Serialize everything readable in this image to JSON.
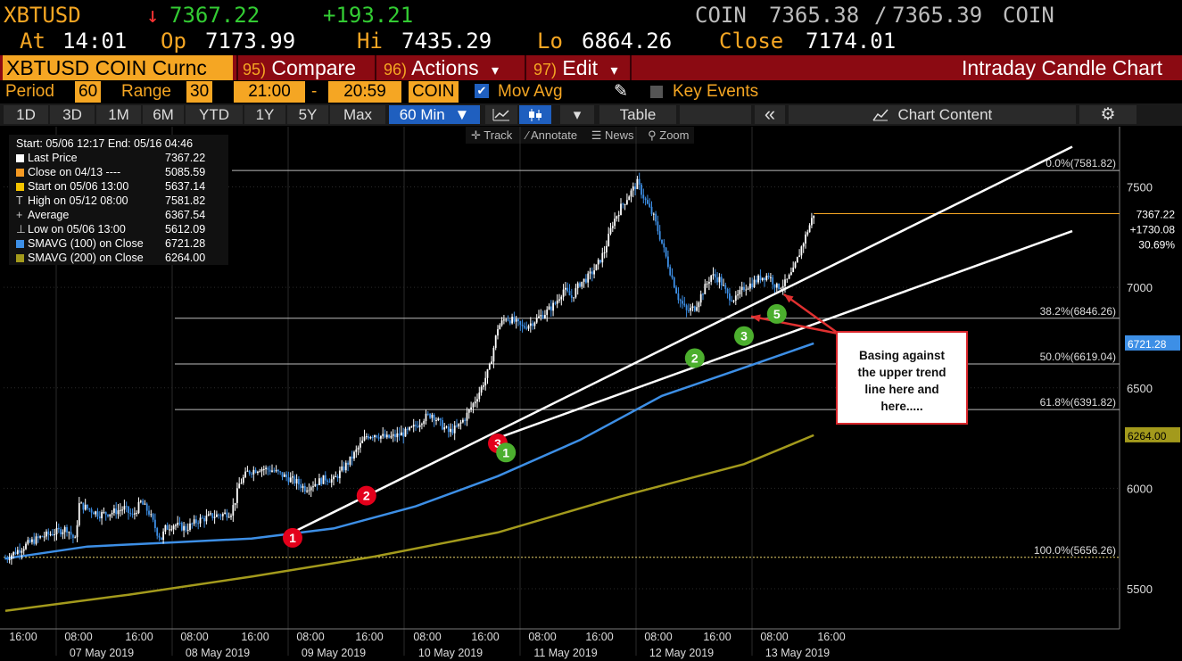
{
  "header": {
    "symbol": "XBTUSD",
    "arrow": "↓",
    "last": "7367.22",
    "change": "+193.21",
    "source_left": "COIN",
    "bid": "7365.38",
    "slash": "/",
    "ask": "7365.39",
    "source_right": "COIN",
    "at_label": "At",
    "at_time": "14:01",
    "op_label": "Op",
    "op_value": "7173.99",
    "hi_label": "Hi",
    "hi_value": "7435.29",
    "lo_label": "Lo",
    "lo_value": "6864.26",
    "close_label": "Close",
    "close_value": "7174.01"
  },
  "menu": {
    "ticker": "XBTUSD COIN Curnc",
    "compare_num": "95)",
    "compare": "Compare",
    "actions_num": "96)",
    "actions": "Actions",
    "actions_caret": "▾",
    "edit_num": "97)",
    "edit": "Edit",
    "edit_caret": "▾",
    "chart_title": "Intraday Candle Chart"
  },
  "settings": {
    "period_label": "Period",
    "period_value": "60",
    "range_label": "Range",
    "range_value": "30",
    "range_start": "21:00",
    "range_dash": "-",
    "range_end": "20:59",
    "source": "COIN",
    "mov_avg_check": "✔",
    "mov_avg": "Mov Avg",
    "pencil": "✎",
    "key_events": "Key Events"
  },
  "toolbar": {
    "ranges": [
      "1D",
      "3D",
      "1M",
      "6M",
      "YTD",
      "1Y",
      "5Y",
      "Max"
    ],
    "interval": "60 Min",
    "interval_caret": "▼",
    "caret": "▾",
    "table": "Table",
    "collapse": "«",
    "chart_content": "Chart Content",
    "gear": "⚙"
  },
  "tools": {
    "track": "Track",
    "annotate": "Annotate",
    "news": "News",
    "zoom": "Zoom"
  },
  "legend": {
    "header": "Start: 05/06 12:17 End: 05/16 04:46",
    "items": [
      {
        "label": "Last Price",
        "value": "7367.22",
        "color": "#ffffff"
      },
      {
        "label": "Close on 04/13 ----",
        "value": "5085.59",
        "color": "#f59a23"
      },
      {
        "label": "Start on 05/06 13:00",
        "value": "5637.14",
        "color": "#f5c400"
      },
      {
        "label": "High on 05/12 08:00",
        "value": "7581.82",
        "color": "#cccccc"
      },
      {
        "label": "Average",
        "value": "6367.54",
        "color": "#cccccc"
      },
      {
        "label": "Low on 05/06 13:00",
        "value": "5612.09",
        "color": "#cccccc"
      },
      {
        "label": "SMAVG (100)  on Close",
        "value": "6721.28",
        "color": "#3d8fe6"
      },
      {
        "label": "SMAVG (200)  on Close",
        "value": "6264.00",
        "color": "#a39a1c"
      }
    ]
  },
  "callout": {
    "lines": [
      "Basing against",
      "the upper trend",
      "line here and",
      "here....."
    ]
  },
  "colors": {
    "accent_amber": "#f5a623",
    "menu_bar": "#8b0a12",
    "candle_up": "#ffffff",
    "candle_down": "#3d8fe6",
    "sma100": "#3d8fe6",
    "sma200": "#a39a1c",
    "marker_red": "#e3001b",
    "marker_green": "#4caf2e"
  },
  "chart_data": {
    "type": "candlestick",
    "title": "Intraday Candle Chart",
    "period_minutes": 60,
    "ylim": [
      5300,
      7800
    ],
    "y_ticks": [
      5500,
      6000,
      6500,
      7000,
      7500
    ],
    "x_ticks": [
      {
        "time": "16:00",
        "date": ""
      },
      {
        "time": "08:00",
        "date": "07 May 2019"
      },
      {
        "time": "16:00",
        "date": ""
      },
      {
        "time": "08:00",
        "date": "08 May 2019"
      },
      {
        "time": "16:00",
        "date": ""
      },
      {
        "time": "08:00",
        "date": "09 May 2019"
      },
      {
        "time": "16:00",
        "date": ""
      },
      {
        "time": "08:00",
        "date": "10 May 2019"
      },
      {
        "time": "16:00",
        "date": ""
      },
      {
        "time": "08:00",
        "date": "11 May 2019"
      },
      {
        "time": "16:00",
        "date": ""
      },
      {
        "time": "08:00",
        "date": "12 May 2019"
      },
      {
        "time": "16:00",
        "date": ""
      },
      {
        "time": "08:00",
        "date": "13 May 2019"
      },
      {
        "time": "16:00",
        "date": ""
      }
    ],
    "fib_levels": [
      {
        "label": "0.0%(7581.82)",
        "value": 7581.82
      },
      {
        "label": "38.2%(6846.26)",
        "value": 6846.26
      },
      {
        "label": "50.0%(6619.04)",
        "value": 6619.04
      },
      {
        "label": "61.8%(6391.82)",
        "value": 6391.82
      },
      {
        "label": "100.0%(5656.26)",
        "value": 5656.26
      }
    ],
    "price_tags": [
      {
        "label": "7367.22",
        "value": 7367.22
      },
      {
        "label": "+1730.08",
        "value": 7300
      },
      {
        "label": "30.69%",
        "value": 7230
      },
      {
        "label": "6721.28",
        "value": 6721.28
      },
      {
        "label": "6264.00",
        "value": 6264.0
      }
    ],
    "price_series": [
      [
        0,
        5650
      ],
      [
        6,
        5690
      ],
      [
        12,
        5730
      ],
      [
        18,
        5760
      ],
      [
        24,
        5780
      ],
      [
        30,
        5800
      ],
      [
        34,
        5740
      ],
      [
        36,
        5920
      ],
      [
        40,
        5900
      ],
      [
        46,
        5870
      ],
      [
        52,
        5880
      ],
      [
        58,
        5900
      ],
      [
        62,
        5860
      ],
      [
        66,
        5930
      ],
      [
        70,
        5880
      ],
      [
        74,
        5780
      ],
      [
        76,
        5750
      ],
      [
        78,
        5800
      ],
      [
        82,
        5820
      ],
      [
        88,
        5800
      ],
      [
        94,
        5840
      ],
      [
        100,
        5860
      ],
      [
        106,
        5870
      ],
      [
        110,
        5880
      ],
      [
        112,
        5940
      ],
      [
        114,
        6020
      ],
      [
        118,
        6080
      ],
      [
        124,
        6100
      ],
      [
        130,
        6090
      ],
      [
        136,
        6060
      ],
      [
        142,
        6030
      ],
      [
        146,
        6000
      ],
      [
        150,
        6020
      ],
      [
        156,
        6050
      ],
      [
        160,
        6040
      ],
      [
        164,
        6090
      ],
      [
        168,
        6140
      ],
      [
        172,
        6200
      ],
      [
        176,
        6260
      ],
      [
        180,
        6270
      ],
      [
        186,
        6250
      ],
      [
        190,
        6260
      ],
      [
        196,
        6280
      ],
      [
        200,
        6310
      ],
      [
        204,
        6350
      ],
      [
        208,
        6370
      ],
      [
        212,
        6320
      ],
      [
        216,
        6280
      ],
      [
        220,
        6300
      ],
      [
        224,
        6350
      ],
      [
        228,
        6420
      ],
      [
        232,
        6500
      ],
      [
        236,
        6600
      ],
      [
        240,
        6800
      ],
      [
        244,
        6850
      ],
      [
        248,
        6830
      ],
      [
        252,
        6800
      ],
      [
        256,
        6820
      ],
      [
        260,
        6850
      ],
      [
        264,
        6880
      ],
      [
        268,
        6920
      ],
      [
        272,
        6990
      ],
      [
        276,
        6950
      ],
      [
        280,
        7020
      ],
      [
        284,
        7050
      ],
      [
        288,
        7100
      ],
      [
        292,
        7180
      ],
      [
        296,
        7320
      ],
      [
        300,
        7400
      ],
      [
        304,
        7460
      ],
      [
        308,
        7520
      ],
      [
        312,
        7430
      ],
      [
        316,
        7350
      ],
      [
        320,
        7220
      ],
      [
        324,
        7080
      ],
      [
        328,
        6950
      ],
      [
        332,
        6880
      ],
      [
        336,
        6900
      ],
      [
        340,
        6980
      ],
      [
        344,
        7060
      ],
      [
        348,
        7040
      ],
      [
        352,
        6960
      ],
      [
        356,
        6940
      ],
      [
        360,
        7000
      ],
      [
        364,
        7020
      ],
      [
        368,
        7050
      ],
      [
        372,
        7060
      ],
      [
        376,
        7000
      ],
      [
        380,
        7020
      ],
      [
        384,
        7080
      ],
      [
        388,
        7200
      ],
      [
        392,
        7310
      ],
      [
        394,
        7367.22
      ]
    ],
    "sma100": [
      [
        0,
        5650
      ],
      [
        40,
        5710
      ],
      [
        80,
        5730
      ],
      [
        120,
        5750
      ],
      [
        160,
        5800
      ],
      [
        200,
        5910
      ],
      [
        240,
        6060
      ],
      [
        280,
        6240
      ],
      [
        320,
        6460
      ],
      [
        360,
        6600
      ],
      [
        394,
        6721.28
      ]
    ],
    "sma200": [
      [
        0,
        5390
      ],
      [
        60,
        5470
      ],
      [
        120,
        5560
      ],
      [
        180,
        5660
      ],
      [
        240,
        5780
      ],
      [
        300,
        5960
      ],
      [
        360,
        6120
      ],
      [
        394,
        6264.0
      ]
    ],
    "trendlines": [
      {
        "name": "upper",
        "from": [
          140,
          5780
        ],
        "to": [
          520,
          7700
        ]
      },
      {
        "name": "lower",
        "from": [
          240,
          6250
        ],
        "to": [
          520,
          7280
        ]
      }
    ],
    "markers": [
      {
        "label": "1",
        "color": "red",
        "x": 140,
        "y": 5780
      },
      {
        "label": "2",
        "color": "red",
        "x": 176,
        "y": 5990
      },
      {
        "label": "3",
        "color": "red",
        "x": 240,
        "y": 6250
      },
      {
        "label": "1",
        "color": "green",
        "x": 244,
        "y": 6240
      },
      {
        "label": "2",
        "color": "green",
        "x": 336,
        "y": 6710
      },
      {
        "label": "3",
        "color": "green",
        "x": 360,
        "y": 6820
      },
      {
        "label": "5",
        "color": "green",
        "x": 376,
        "y": 6930
      }
    ]
  }
}
